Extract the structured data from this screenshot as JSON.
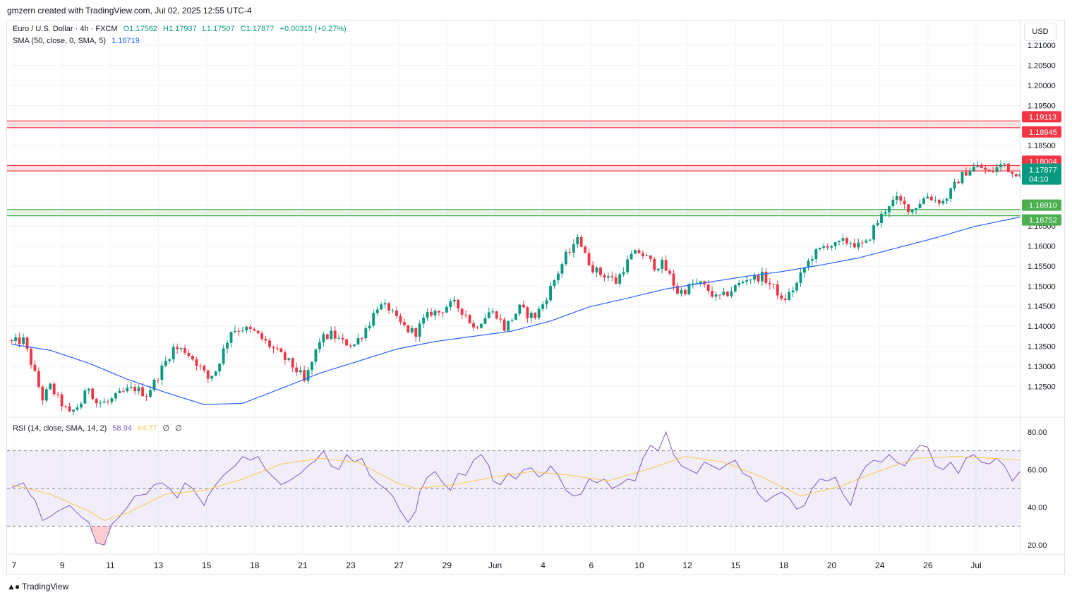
{
  "header": {
    "credit": "gmzern created with TradingView.com, Jul 02, 2025 12:55 UTC-4"
  },
  "legend": {
    "symbol": "Euro / U.S. Dollar · 4h · FXCM",
    "open": "O1.17562",
    "high": "H1.17937",
    "low": "L1.17507",
    "close": "C1.17877",
    "change": "+0.00315 (+0.27%)",
    "sma_label": "SMA (50, close, 0, SMA, 5)",
    "sma_value": "1.16719",
    "rsi_label": "RSI (14, close, SMA, 14, 2)",
    "rsi_value": "58.94",
    "rsi_ma_value": "64.77",
    "rsi_extra_1": "∅",
    "rsi_extra_2": "∅"
  },
  "currency": "USD",
  "footer": {
    "logo": "TradingView"
  },
  "colors": {
    "up": "#089981",
    "down": "#f23645",
    "sma": "#2962ff",
    "rsi": "#7e57c2",
    "rsi_ma": "#f7c948",
    "resistance": "#f23645",
    "support": "#4caf50"
  },
  "chart_data": [
    {
      "type": "candlestick",
      "title": "Euro / U.S. Dollar · 4h · FXCM",
      "ylim": [
        1.1225,
        1.2125
      ],
      "y_ticks": [
        "1.21000",
        "1.20500",
        "1.20000",
        "1.19500",
        "1.18500",
        "1.18000",
        "1.17000",
        "1.16500",
        "1.16000",
        "1.15500",
        "1.15000",
        "1.14500",
        "1.14000",
        "1.13500",
        "1.13000",
        "1.12500"
      ],
      "x_ticks": [
        "7",
        "9",
        "11",
        "13",
        "15",
        "18",
        "21",
        "23",
        "27",
        "29",
        "Jun",
        "4",
        "6",
        "10",
        "12",
        "15",
        "18",
        "20",
        "24",
        "26",
        "Jul"
      ],
      "close_path": [
        [
          0,
          1.136
        ],
        [
          3,
          1.1365
        ],
        [
          5,
          1.131
        ],
        [
          6,
          1.128
        ],
        [
          8,
          1.122
        ],
        [
          10,
          1.125
        ],
        [
          12,
          1.122
        ],
        [
          15,
          1.118
        ],
        [
          18,
          1.121
        ],
        [
          20,
          1.125
        ],
        [
          22,
          1.121
        ],
        [
          25,
          1.121
        ],
        [
          28,
          1.123
        ],
        [
          30,
          1.124
        ],
        [
          32,
          1.1245
        ],
        [
          35,
          1.123
        ],
        [
          37,
          1.126
        ],
        [
          39,
          1.1295
        ],
        [
          42,
          1.1345
        ],
        [
          45,
          1.134
        ],
        [
          48,
          1.131
        ],
        [
          51,
          1.127
        ],
        [
          53,
          1.129
        ],
        [
          55,
          1.134
        ],
        [
          57,
          1.139
        ],
        [
          60,
          1.1395
        ],
        [
          63,
          1.1385
        ],
        [
          66,
          1.136
        ],
        [
          69,
          1.1335
        ],
        [
          72,
          1.131
        ],
        [
          75,
          1.128
        ],
        [
          76,
          1.126
        ],
        [
          78,
          1.131
        ],
        [
          80,
          1.1365
        ],
        [
          83,
          1.138
        ],
        [
          86,
          1.136
        ],
        [
          89,
          1.1355
        ],
        [
          91,
          1.138
        ],
        [
          93,
          1.141
        ],
        [
          95,
          1.145
        ],
        [
          98,
          1.1445
        ],
        [
          100,
          1.1415
        ],
        [
          103,
          1.139
        ],
        [
          105,
          1.1385
        ],
        [
          107,
          1.1415
        ],
        [
          109,
          1.1435
        ],
        [
          111,
          1.1435
        ],
        [
          113,
          1.145
        ],
        [
          115,
          1.1455
        ],
        [
          118,
          1.143
        ],
        [
          120,
          1.1395
        ],
        [
          122,
          1.1415
        ],
        [
          124,
          1.1435
        ],
        [
          126,
          1.143
        ],
        [
          128,
          1.1395
        ],
        [
          130,
          1.142
        ],
        [
          132,
          1.1445
        ],
        [
          134,
          1.143
        ],
        [
          136,
          1.1425
        ],
        [
          138,
          1.1455
        ],
        [
          140,
          1.1495
        ],
        [
          142,
          1.1535
        ],
        [
          144,
          1.1575
        ],
        [
          146,
          1.1595
        ],
        [
          147,
          1.163
        ],
        [
          149,
          1.1575
        ],
        [
          151,
          1.1545
        ],
        [
          153,
          1.153
        ],
        [
          155,
          1.1525
        ],
        [
          157,
          1.151
        ],
        [
          159,
          1.1545
        ],
        [
          161,
          1.1575
        ],
        [
          163,
          1.1585
        ],
        [
          165,
          1.157
        ],
        [
          167,
          1.155
        ],
        [
          169,
          1.1555
        ],
        [
          171,
          1.1525
        ],
        [
          173,
          1.1485
        ],
        [
          175,
          1.149
        ],
        [
          177,
          1.1505
        ],
        [
          179,
          1.1505
        ],
        [
          181,
          1.149
        ],
        [
          183,
          1.147
        ],
        [
          185,
          1.1475
        ],
        [
          187,
          1.149
        ],
        [
          189,
          1.1505
        ],
        [
          191,
          1.152
        ],
        [
          193,
          1.152
        ],
        [
          195,
          1.1525
        ],
        [
          197,
          1.1505
        ],
        [
          199,
          1.1485
        ],
        [
          200,
          1.146
        ],
        [
          202,
          1.148
        ],
        [
          204,
          1.1505
        ],
        [
          206,
          1.1545
        ],
        [
          208,
          1.1575
        ],
        [
          210,
          1.159
        ],
        [
          212,
          1.1605
        ],
        [
          214,
          1.16
        ],
        [
          216,
          1.161
        ],
        [
          218,
          1.161
        ],
        [
          220,
          1.16
        ],
        [
          222,
          1.1605
        ],
        [
          224,
          1.1645
        ],
        [
          226,
          1.1675
        ],
        [
          228,
          1.1705
        ],
        [
          230,
          1.1715
        ],
        [
          232,
          1.17
        ],
        [
          234,
          1.169
        ],
        [
          236,
          1.171
        ],
        [
          238,
          1.1725
        ],
        [
          240,
          1.1715
        ],
        [
          242,
          1.171
        ],
        [
          244,
          1.1735
        ],
        [
          246,
          1.1765
        ],
        [
          248,
          1.1785
        ],
        [
          250,
          1.1795
        ],
        [
          252,
          1.1795
        ],
        [
          254,
          1.178
        ],
        [
          256,
          1.1795
        ],
        [
          258,
          1.1805
        ],
        [
          260,
          1.178
        ],
        [
          262,
          1.1788
        ]
      ],
      "sma_path": [
        [
          0,
          1.1355
        ],
        [
          10,
          1.134
        ],
        [
          20,
          1.1308
        ],
        [
          30,
          1.1268
        ],
        [
          40,
          1.1235
        ],
        [
          50,
          1.1205
        ],
        [
          60,
          1.1208
        ],
        [
          70,
          1.1245
        ],
        [
          80,
          1.1283
        ],
        [
          90,
          1.1313
        ],
        [
          100,
          1.1343
        ],
        [
          110,
          1.1362
        ],
        [
          120,
          1.1375
        ],
        [
          130,
          1.1388
        ],
        [
          140,
          1.1413
        ],
        [
          150,
          1.1448
        ],
        [
          160,
          1.147
        ],
        [
          170,
          1.1493
        ],
        [
          180,
          1.1508
        ],
        [
          190,
          1.1523
        ],
        [
          200,
          1.1536
        ],
        [
          210,
          1.1552
        ],
        [
          220,
          1.157
        ],
        [
          230,
          1.1595
        ],
        [
          240,
          1.162
        ],
        [
          250,
          1.1648
        ],
        [
          262,
          1.1672
        ]
      ],
      "horizontal_zones": [
        {
          "name": "resistance-zone-1",
          "low": 1.18945,
          "high": 1.19113,
          "labels": [
            "1.19113",
            "1.18945"
          ]
        },
        {
          "name": "resistance-zone-2",
          "low": 1.17868,
          "high": 1.18004,
          "labels": [
            "1.18004",
            "1.17868"
          ]
        },
        {
          "name": "support-zone",
          "low": 1.16752,
          "high": 1.1691,
          "labels": [
            "1.16910",
            "1.16752"
          ]
        }
      ],
      "last_price": {
        "value": "1.17877",
        "countdown": "04:10"
      }
    },
    {
      "type": "line",
      "title": "RSI (14, close, SMA, 14, 2)",
      "ylim": [
        15,
        85
      ],
      "y_ticks": [
        "80.00",
        "60.00",
        "40.00",
        "20.00"
      ],
      "bands": [
        70,
        50,
        30
      ],
      "rsi_path": [
        [
          0,
          50.5
        ],
        [
          3,
          53
        ],
        [
          5,
          46
        ],
        [
          6,
          44
        ],
        [
          8,
          33
        ],
        [
          10,
          35
        ],
        [
          12,
          38
        ],
        [
          15,
          41
        ],
        [
          18,
          35
        ],
        [
          20,
          32
        ],
        [
          22,
          21
        ],
        [
          24,
          20
        ],
        [
          26,
          31
        ],
        [
          28,
          35
        ],
        [
          30,
          40
        ],
        [
          32,
          46
        ],
        [
          35,
          47
        ],
        [
          37,
          52
        ],
        [
          39,
          53
        ],
        [
          41,
          50
        ],
        [
          43,
          45
        ],
        [
          45,
          53
        ],
        [
          47,
          50
        ],
        [
          50,
          41
        ],
        [
          51,
          46
        ],
        [
          53,
          52
        ],
        [
          55,
          57
        ],
        [
          58,
          62
        ],
        [
          60,
          67
        ],
        [
          62,
          65
        ],
        [
          64,
          67
        ],
        [
          66,
          60
        ],
        [
          68,
          56
        ],
        [
          70,
          52
        ],
        [
          72,
          54
        ],
        [
          75,
          58
        ],
        [
          77,
          62
        ],
        [
          79,
          65
        ],
        [
          81,
          70
        ],
        [
          83,
          62
        ],
        [
          85,
          60
        ],
        [
          87,
          68
        ],
        [
          89,
          64
        ],
        [
          91,
          66
        ],
        [
          93,
          57
        ],
        [
          95,
          53
        ],
        [
          97,
          50
        ],
        [
          99,
          46
        ],
        [
          101,
          38
        ],
        [
          103,
          32
        ],
        [
          105,
          38
        ],
        [
          106,
          48
        ],
        [
          108,
          56
        ],
        [
          110,
          59
        ],
        [
          112,
          53
        ],
        [
          114,
          49
        ],
        [
          116,
          58
        ],
        [
          118,
          57
        ],
        [
          120,
          65
        ],
        [
          122,
          68
        ],
        [
          124,
          62
        ],
        [
          125,
          54
        ],
        [
          127,
          52
        ],
        [
          129,
          58
        ],
        [
          131,
          55
        ],
        [
          133,
          60
        ],
        [
          135,
          61
        ],
        [
          137,
          56
        ],
        [
          139,
          59
        ],
        [
          140,
          62
        ],
        [
          142,
          57
        ],
        [
          144,
          49
        ],
        [
          146,
          46
        ],
        [
          148,
          47
        ],
        [
          150,
          55
        ],
        [
          152,
          53
        ],
        [
          154,
          55
        ],
        [
          156,
          50
        ],
        [
          158,
          52
        ],
        [
          160,
          55
        ],
        [
          162,
          54
        ],
        [
          164,
          66
        ],
        [
          166,
          73
        ],
        [
          168,
          70
        ],
        [
          170,
          80
        ],
        [
          172,
          68
        ],
        [
          174,
          62
        ],
        [
          176,
          60
        ],
        [
          178,
          58
        ],
        [
          180,
          64
        ],
        [
          182,
          62
        ],
        [
          184,
          60
        ],
        [
          186,
          63
        ],
        [
          188,
          65
        ],
        [
          190,
          58
        ],
        [
          192,
          56
        ],
        [
          194,
          47
        ],
        [
          196,
          43
        ],
        [
          198,
          46
        ],
        [
          200,
          48
        ],
        [
          202,
          45
        ],
        [
          204,
          39
        ],
        [
          206,
          41
        ],
        [
          208,
          50
        ],
        [
          210,
          55
        ],
        [
          212,
          54
        ],
        [
          214,
          56
        ],
        [
          216,
          47
        ],
        [
          218,
          41
        ],
        [
          220,
          55
        ],
        [
          222,
          62
        ],
        [
          224,
          65
        ],
        [
          226,
          64
        ],
        [
          228,
          68
        ],
        [
          230,
          64
        ],
        [
          232,
          62
        ],
        [
          234,
          68
        ],
        [
          236,
          73
        ],
        [
          238,
          72
        ],
        [
          240,
          62
        ],
        [
          242,
          60
        ],
        [
          244,
          64
        ],
        [
          246,
          58
        ],
        [
          248,
          66
        ],
        [
          250,
          68
        ],
        [
          252,
          64
        ],
        [
          254,
          63
        ],
        [
          256,
          66
        ],
        [
          258,
          62
        ],
        [
          260,
          54
        ],
        [
          262,
          59
        ]
      ],
      "rsi_ma_path": [
        [
          0,
          52
        ],
        [
          10,
          47
        ],
        [
          20,
          38
        ],
        [
          24,
          33
        ],
        [
          30,
          37
        ],
        [
          40,
          47
        ],
        [
          50,
          49
        ],
        [
          60,
          55
        ],
        [
          70,
          63
        ],
        [
          80,
          66
        ],
        [
          90,
          64
        ],
        [
          100,
          53
        ],
        [
          105,
          50
        ],
        [
          115,
          52
        ],
        [
          125,
          56
        ],
        [
          135,
          59
        ],
        [
          145,
          57
        ],
        [
          155,
          54
        ],
        [
          165,
          60
        ],
        [
          175,
          67
        ],
        [
          185,
          64
        ],
        [
          195,
          56
        ],
        [
          205,
          46
        ],
        [
          215,
          51
        ],
        [
          225,
          59
        ],
        [
          235,
          66
        ],
        [
          245,
          67
        ],
        [
          255,
          66
        ],
        [
          262,
          65
        ]
      ]
    }
  ]
}
